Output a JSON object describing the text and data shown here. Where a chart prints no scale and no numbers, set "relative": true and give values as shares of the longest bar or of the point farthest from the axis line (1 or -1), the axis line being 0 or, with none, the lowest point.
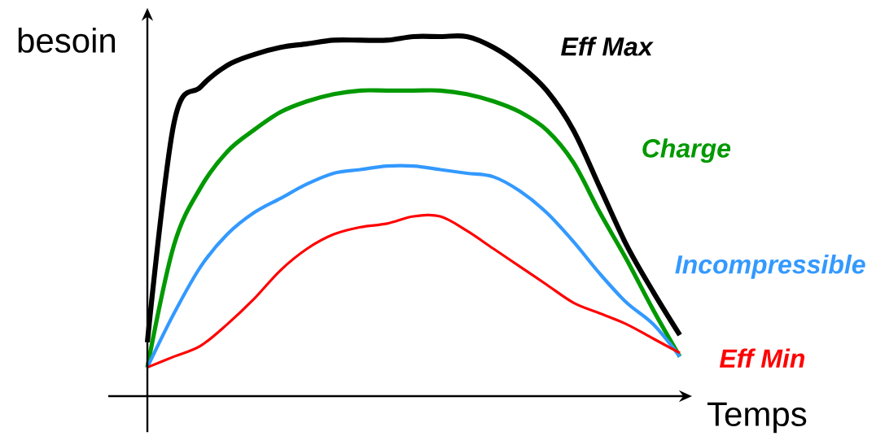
{
  "chart_data": {
    "type": "line",
    "relative": true,
    "xlabel": "Temps",
    "ylabel": "besoin",
    "categories": [
      null,
      null,
      null,
      null,
      null,
      null,
      null,
      null,
      null,
      null,
      null,
      null,
      null,
      null,
      null,
      null,
      null,
      null,
      null,
      null,
      null
    ],
    "series": [
      {
        "name": "Eff Max",
        "color": "#000000",
        "values": [
          0.15,
          0.76,
          0.86,
          0.92,
          0.95,
          0.97,
          0.98,
          0.99,
          0.99,
          0.99,
          1.0,
          1.0,
          1.0,
          0.97,
          0.92,
          0.85,
          0.74,
          0.58,
          0.42,
          0.29,
          0.17
        ]
      },
      {
        "name": "Charge",
        "color": "#009900",
        "values": [
          0.08,
          0.42,
          0.58,
          0.68,
          0.74,
          0.79,
          0.82,
          0.84,
          0.85,
          0.85,
          0.85,
          0.85,
          0.84,
          0.82,
          0.79,
          0.74,
          0.65,
          0.51,
          0.38,
          0.24,
          0.11
        ]
      },
      {
        "name": "Incompressible",
        "color": "#3399ff",
        "values": [
          0.08,
          0.23,
          0.36,
          0.45,
          0.51,
          0.55,
          0.59,
          0.62,
          0.63,
          0.64,
          0.64,
          0.63,
          0.62,
          0.61,
          0.57,
          0.51,
          0.43,
          0.34,
          0.26,
          0.2,
          0.11
        ]
      },
      {
        "name": "Eff Min",
        "color": "#ff0000",
        "values": [
          0.08,
          0.11,
          0.14,
          0.2,
          0.27,
          0.35,
          0.41,
          0.45,
          0.47,
          0.48,
          0.5,
          0.5,
          0.46,
          0.41,
          0.36,
          0.31,
          0.26,
          0.23,
          0.2,
          0.16,
          0.12
        ]
      }
    ]
  }
}
